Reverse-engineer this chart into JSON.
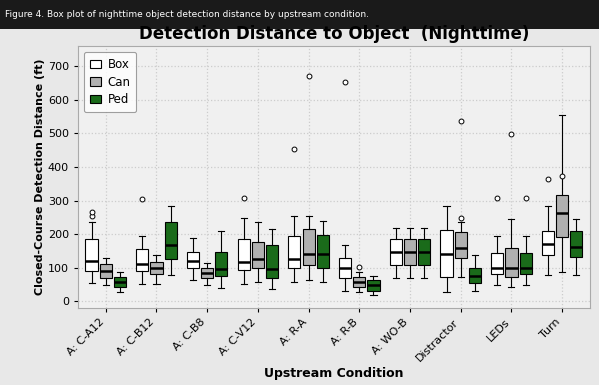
{
  "title": "Detection Distance to Object  (Nighttime)",
  "xlabel": "Upstream Condition",
  "ylabel": "Closed-Course Detection Distance (ft)",
  "suptitle": "Figure 4. Box plot of nighttime object detection distance by upstream condition.",
  "categories": [
    "A: C-A12",
    "A: C-B12",
    "A: C-B8",
    "A: C-V12",
    "A: R-A",
    "A: R-B",
    "A: WO-B",
    "Distractor",
    "LEDs",
    "Turn"
  ],
  "ylim": [
    -20,
    760
  ],
  "yticks": [
    0,
    100,
    200,
    300,
    400,
    500,
    600,
    700
  ],
  "colors": {
    "box": "#FFFFFF",
    "can": "#B0B0B0",
    "ped": "#1a6b1a"
  },
  "box_data": {
    "A: C-A12": {
      "box": {
        "q1": 90,
        "median": 120,
        "q3": 185,
        "whislo": 55,
        "whishi": 235,
        "fliers": [
          255,
          265
        ]
      },
      "can": {
        "q1": 70,
        "median": 90,
        "q3": 110,
        "whislo": 48,
        "whishi": 130,
        "fliers": []
      },
      "ped": {
        "q1": 42,
        "median": 58,
        "q3": 72,
        "whislo": 28,
        "whishi": 88,
        "fliers": []
      }
    },
    "A: C-B12": {
      "box": {
        "q1": 90,
        "median": 112,
        "q3": 155,
        "whislo": 52,
        "whishi": 195,
        "fliers": [
          305
        ]
      },
      "can": {
        "q1": 82,
        "median": 100,
        "q3": 118,
        "whislo": 52,
        "whishi": 138,
        "fliers": []
      },
      "ped": {
        "q1": 125,
        "median": 168,
        "q3": 235,
        "whislo": 78,
        "whishi": 285,
        "fliers": []
      }
    },
    "A: C-B8": {
      "box": {
        "q1": 98,
        "median": 120,
        "q3": 148,
        "whislo": 62,
        "whishi": 188,
        "fliers": []
      },
      "can": {
        "q1": 70,
        "median": 85,
        "q3": 100,
        "whislo": 50,
        "whishi": 115,
        "fliers": []
      },
      "ped": {
        "q1": 75,
        "median": 95,
        "q3": 148,
        "whislo": 40,
        "whishi": 208,
        "fliers": []
      }
    },
    "A: C-V12": {
      "box": {
        "q1": 92,
        "median": 118,
        "q3": 185,
        "whislo": 52,
        "whishi": 248,
        "fliers": [
          308
        ]
      },
      "can": {
        "q1": 98,
        "median": 125,
        "q3": 178,
        "whislo": 58,
        "whishi": 235,
        "fliers": []
      },
      "ped": {
        "q1": 70,
        "median": 95,
        "q3": 168,
        "whislo": 38,
        "whishi": 215,
        "fliers": []
      }
    },
    "A: R-A": {
      "box": {
        "q1": 98,
        "median": 125,
        "q3": 195,
        "whislo": 58,
        "whishi": 255,
        "fliers": [
          455
        ]
      },
      "can": {
        "q1": 108,
        "median": 140,
        "q3": 215,
        "whislo": 62,
        "whishi": 255,
        "fliers": [
          672
        ]
      },
      "ped": {
        "q1": 100,
        "median": 140,
        "q3": 198,
        "whislo": 58,
        "whishi": 238,
        "fliers": []
      }
    },
    "A: R-B": {
      "box": {
        "q1": 68,
        "median": 98,
        "q3": 128,
        "whislo": 32,
        "whishi": 168,
        "fliers": [
          652
        ]
      },
      "can": {
        "q1": 42,
        "median": 58,
        "q3": 72,
        "whislo": 28,
        "whishi": 88,
        "fliers": [
          102
        ]
      },
      "ped": {
        "q1": 30,
        "median": 48,
        "q3": 62,
        "whislo": 18,
        "whishi": 75,
        "fliers": []
      }
    },
    "A: WO-B": {
      "box": {
        "q1": 108,
        "median": 148,
        "q3": 185,
        "whislo": 68,
        "whishi": 218,
        "fliers": []
      },
      "can": {
        "q1": 108,
        "median": 148,
        "q3": 185,
        "whislo": 68,
        "whishi": 218,
        "fliers": []
      },
      "ped": {
        "q1": 108,
        "median": 148,
        "q3": 185,
        "whislo": 68,
        "whishi": 218,
        "fliers": []
      }
    },
    "Distractor": {
      "box": {
        "q1": 72,
        "median": 142,
        "q3": 212,
        "whislo": 28,
        "whishi": 285,
        "fliers": []
      },
      "can": {
        "q1": 128,
        "median": 158,
        "q3": 205,
        "whislo": 72,
        "whishi": 235,
        "fliers": [
          538,
          248
        ]
      },
      "ped": {
        "q1": 55,
        "median": 75,
        "q3": 98,
        "whislo": 30,
        "whishi": 138,
        "fliers": []
      }
    },
    "LEDs": {
      "box": {
        "q1": 82,
        "median": 98,
        "q3": 145,
        "whislo": 48,
        "whishi": 195,
        "fliers": [
          308
        ]
      },
      "can": {
        "q1": 72,
        "median": 98,
        "q3": 158,
        "whislo": 42,
        "whishi": 245,
        "fliers": [
          498
        ]
      },
      "ped": {
        "q1": 82,
        "median": 98,
        "q3": 145,
        "whislo": 48,
        "whishi": 195,
        "fliers": [
          308
        ]
      }
    },
    "Turn": {
      "box": {
        "q1": 138,
        "median": 172,
        "q3": 208,
        "whislo": 78,
        "whishi": 285,
        "fliers": [
          365
        ]
      },
      "can": {
        "q1": 192,
        "median": 262,
        "q3": 318,
        "whislo": 88,
        "whishi": 555,
        "fliers": [
          372
        ]
      },
      "ped": {
        "q1": 132,
        "median": 162,
        "q3": 208,
        "whislo": 78,
        "whishi": 245,
        "fliers": []
      }
    }
  },
  "fig_bg": "#e8e8e8",
  "plot_bg": "#f0f0f0",
  "grid_color": "#cccccc",
  "caption_bg": "#1a1a1a",
  "caption_color": "#ffffff",
  "caption_fontsize": 6.5,
  "title_fontsize": 12,
  "axis_label_fontsize": 9,
  "tick_fontsize": 8,
  "legend_fontsize": 8.5,
  "box_width": 0.24,
  "offsets": [
    -0.28,
    0.0,
    0.28
  ]
}
